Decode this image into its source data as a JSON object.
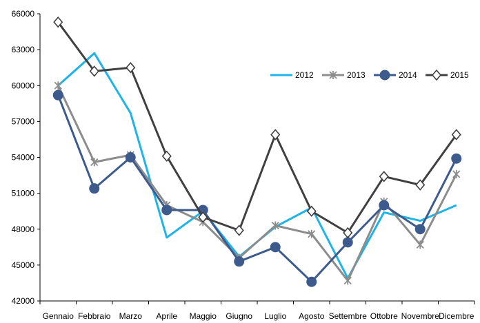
{
  "chart_data": {
    "type": "line",
    "title": "",
    "xlabel": "",
    "ylabel": "",
    "categories": [
      "Gennaio",
      "Febbraio",
      "Marzo",
      "Aprile",
      "Maggio",
      "Giugno",
      "Luglio",
      "Agosto",
      "Settembre",
      "Ottobre",
      "Novembre",
      "Dicembre"
    ],
    "ylim": [
      42000,
      66000
    ],
    "yticks": [
      "42000",
      "45000",
      "48000",
      "51000",
      "54000",
      "57000",
      "60000",
      "63000",
      "66000"
    ],
    "grid": false,
    "legend_position": "top-right",
    "series": [
      {
        "name": "2012",
        "color": "#1fb4e8",
        "marker": "none",
        "values": [
          60000,
          62700,
          57700,
          47300,
          49500,
          45700,
          48200,
          49800,
          43900,
          49400,
          48700,
          50000
        ]
      },
      {
        "name": "2013",
        "color": "#8c8c8c",
        "marker": "x",
        "values": [
          60000,
          53600,
          54200,
          50000,
          48600,
          45600,
          48300,
          47600,
          43700,
          50300,
          46700,
          52600
        ]
      },
      {
        "name": "2014",
        "color": "#3c5a8c",
        "marker": "circle",
        "values": [
          59200,
          51400,
          54000,
          49600,
          49600,
          45300,
          46500,
          43600,
          46900,
          50000,
          48000,
          53900
        ]
      },
      {
        "name": "2015",
        "color": "#404040",
        "marker": "diamond",
        "values": [
          65300,
          61200,
          61500,
          54100,
          49000,
          47900,
          55900,
          49500,
          47700,
          52400,
          51700,
          55900
        ]
      }
    ]
  }
}
